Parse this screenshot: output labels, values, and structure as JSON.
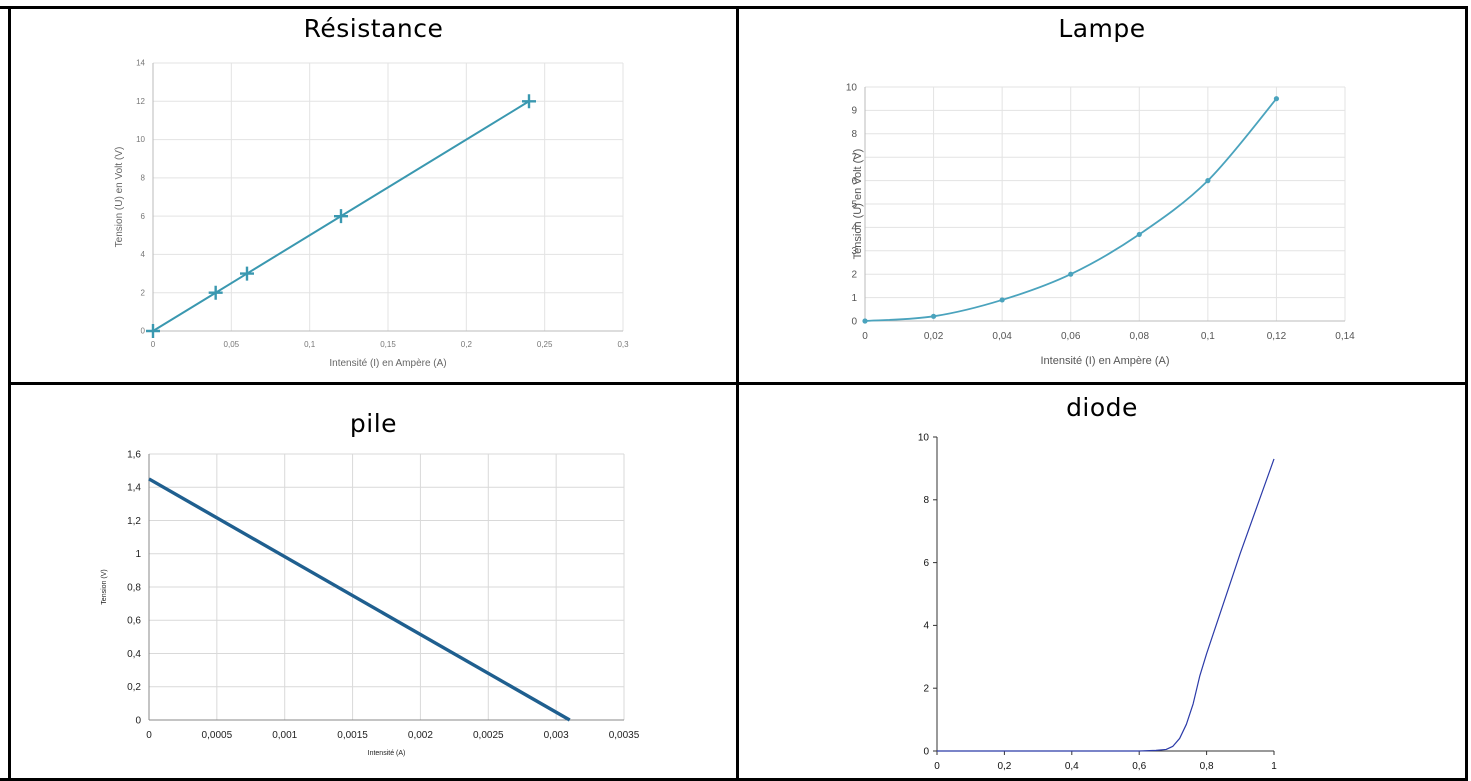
{
  "cells": [
    {
      "title": "Résistance"
    },
    {
      "title": "Lampe"
    },
    {
      "title": "pile"
    },
    {
      "title": "diode"
    }
  ],
  "chart_data": [
    {
      "type": "line",
      "xlabel": "Intensité (I) en Ampère (A)",
      "ylabel": "Tension (U) en Volt (V)",
      "xlim": [
        0,
        0.3
      ],
      "ylim": [
        0,
        14
      ],
      "xticks": [
        0,
        0.05,
        0.1,
        0.15,
        0.2,
        0.25,
        0.3
      ],
      "yticks": [
        0,
        2,
        4,
        6,
        8,
        10,
        12,
        14
      ],
      "xtick_labels": [
        "0",
        "0,05",
        "0,1",
        "0,15",
        "0,2",
        "0,25",
        "0,3"
      ],
      "ytick_labels": [
        "0",
        "2",
        "4",
        "6",
        "8",
        "10",
        "12",
        "14"
      ],
      "marker": "plus",
      "color": "#3a98b0",
      "grid": true,
      "series": [
        {
          "x": [
            0,
            0.04,
            0.06,
            0.12,
            0.24
          ],
          "values": [
            0,
            2,
            3,
            6,
            12
          ]
        }
      ]
    },
    {
      "type": "line",
      "xlabel": "Intensité (I) en Ampère (A)",
      "ylabel": "Tension (U) en Volt (V)",
      "xlim": [
        0,
        0.14
      ],
      "ylim": [
        0,
        10
      ],
      "xticks": [
        0,
        0.02,
        0.04,
        0.06,
        0.08,
        0.1,
        0.12,
        0.14
      ],
      "yticks": [
        0,
        1,
        2,
        3,
        4,
        5,
        6,
        7,
        8,
        9,
        10
      ],
      "xtick_labels": [
        "0",
        "0,02",
        "0,04",
        "0,06",
        "0,08",
        "0,1",
        "0,12",
        "0,14"
      ],
      "ytick_labels": [
        "0",
        "1",
        "2",
        "3",
        "4",
        "5",
        "6",
        "7",
        "8",
        "9",
        "10"
      ],
      "marker": "dot",
      "smooth": true,
      "color": "#4aa3bd",
      "grid": true,
      "series": [
        {
          "x": [
            0,
            0.02,
            0.04,
            0.06,
            0.08,
            0.1,
            0.12
          ],
          "values": [
            0,
            0.2,
            0.9,
            2.0,
            3.7,
            6.0,
            9.5
          ]
        }
      ]
    },
    {
      "type": "line",
      "xlabel": "Intensité (A)",
      "ylabel": "Tension (V)",
      "xlim": [
        0,
        0.0035
      ],
      "ylim": [
        0,
        1.6
      ],
      "xticks": [
        0,
        0.0005,
        0.001,
        0.0015,
        0.002,
        0.0025,
        0.003,
        0.0035
      ],
      "yticks": [
        0,
        0.2,
        0.4,
        0.6,
        0.8,
        1,
        1.2,
        1.4,
        1.6
      ],
      "xtick_labels": [
        "0",
        "0,0005",
        "0,001",
        "0,0015",
        "0,002",
        "0,0025",
        "0,003",
        "0,0035"
      ],
      "ytick_labels": [
        "0",
        "0,2",
        "0,4",
        "0,6",
        "0,8",
        "1",
        "1,2",
        "1,4",
        "1,6"
      ],
      "color": "#1f5f8f",
      "grid": true,
      "series": [
        {
          "x": [
            0,
            0.0031
          ],
          "values": [
            1.45,
            0
          ]
        }
      ]
    },
    {
      "type": "line",
      "xlim": [
        0,
        1
      ],
      "ylim": [
        0,
        10
      ],
      "xticks": [
        0,
        0.2,
        0.4,
        0.6,
        0.8,
        1
      ],
      "yticks": [
        0,
        2,
        4,
        6,
        8,
        10
      ],
      "xtick_labels": [
        "0",
        "0,2",
        "0,4",
        "0,6",
        "0,8",
        "1"
      ],
      "ytick_labels": [
        "0",
        "2",
        "4",
        "6",
        "8",
        "10"
      ],
      "color": "#2b3aa8",
      "grid": false,
      "series": [
        {
          "x": [
            0,
            0.6,
            0.65,
            0.68,
            0.7,
            0.72,
            0.74,
            0.76,
            0.78,
            0.8,
            0.85,
            0.9,
            0.95,
            1.0
          ],
          "values": [
            0,
            0,
            0.02,
            0.05,
            0.15,
            0.4,
            0.85,
            1.5,
            2.4,
            3.1,
            4.7,
            6.3,
            7.8,
            9.3
          ]
        }
      ]
    }
  ]
}
